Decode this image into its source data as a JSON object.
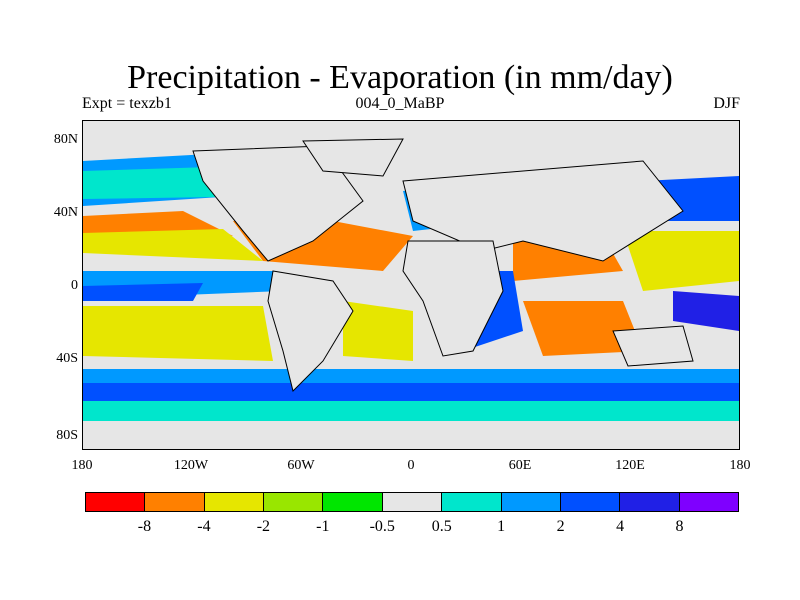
{
  "title": "Precipitation - Evaporation (in mm/day)",
  "subtitle": {
    "left": "Expt = texzb1",
    "center": "004_0_MaBP",
    "right": "DJF"
  },
  "axes": {
    "y_ticks": [
      "80N",
      "40N",
      "0",
      "40S",
      "80S"
    ],
    "x_ticks": [
      "180",
      "120W",
      "60W",
      "0",
      "60E",
      "120E",
      "180"
    ]
  },
  "colorbar": {
    "colors": [
      "#ff0000",
      "#ff8000",
      "#e6e600",
      "#99e600",
      "#00e600",
      "#e6e6e6",
      "#00e6cc",
      "#0099ff",
      "#0050ff",
      "#2020e6",
      "#7f00ff"
    ],
    "labels": [
      "-8",
      "-4",
      "-2",
      "-1",
      "-0.5",
      "0.5",
      "1",
      "2",
      "4",
      "8"
    ]
  }
}
